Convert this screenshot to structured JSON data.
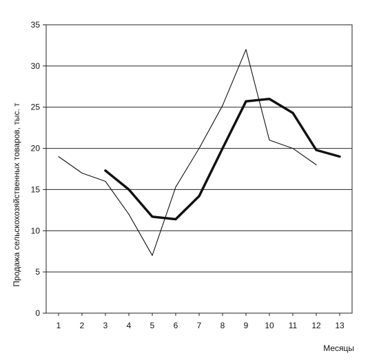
{
  "chart_data": {
    "type": "line",
    "title": "",
    "xlabel": "Месяцы",
    "ylabel": "Продажа сельскохозяйственных товаров, тыс. т",
    "categories": [
      "1",
      "2",
      "3",
      "4",
      "5",
      "6",
      "7",
      "8",
      "9",
      "10",
      "11",
      "12",
      "13"
    ],
    "ylim": [
      0,
      35
    ],
    "yticks": [
      "0",
      "5",
      "10",
      "15",
      "20",
      "25",
      "30",
      "35"
    ],
    "grid": "horizontal",
    "series": [
      {
        "style": "thin",
        "color": "#111111",
        "values": [
          19,
          17,
          16,
          12,
          7,
          15.3,
          20,
          25.2,
          32,
          21,
          20,
          18,
          null
        ]
      },
      {
        "style": "thick",
        "color": "#111111",
        "values": [
          null,
          null,
          17.3,
          15,
          11.7,
          11.4,
          14.2,
          20,
          25.7,
          26,
          24.3,
          19.8,
          19
        ]
      }
    ]
  }
}
